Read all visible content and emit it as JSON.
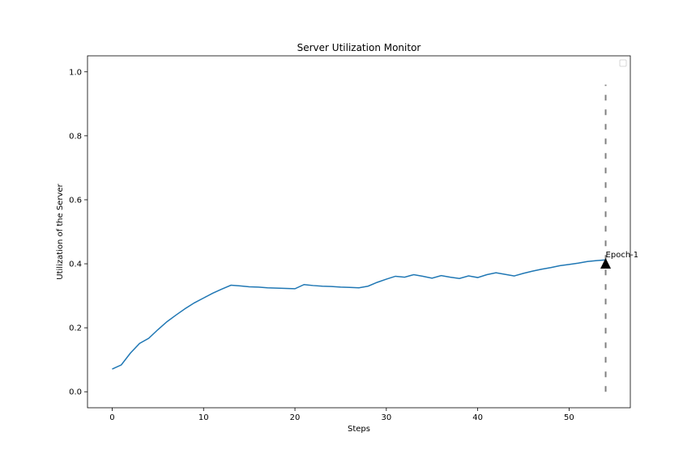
{
  "chart_data": {
    "type": "line",
    "title": "Server Utilization Monitor",
    "xlabel": "Steps",
    "ylabel": "Utilization of the Server",
    "xlim": [
      -2.7,
      56.7
    ],
    "ylim": [
      -0.05,
      1.05
    ],
    "xticks": [
      "0",
      "10",
      "20",
      "30",
      "40",
      "50"
    ],
    "yticks": [
      "0.0",
      "0.2",
      "0.4",
      "0.6",
      "0.8",
      "1.0"
    ],
    "grid": false,
    "legend": "top-right (empty)",
    "line_color": "#1f77b4",
    "x": [
      0,
      1,
      2,
      3,
      4,
      5,
      6,
      7,
      8,
      9,
      10,
      11,
      12,
      13,
      14,
      15,
      16,
      17,
      18,
      19,
      20,
      21,
      22,
      23,
      24,
      25,
      26,
      27,
      28,
      29,
      30,
      31,
      32,
      33,
      34,
      35,
      36,
      37,
      38,
      39,
      40,
      41,
      42,
      43,
      44,
      45,
      46,
      47,
      48,
      49,
      50,
      51,
      52,
      53,
      54
    ],
    "y": [
      0.071,
      0.084,
      0.121,
      0.151,
      0.167,
      0.194,
      0.219,
      0.24,
      0.26,
      0.278,
      0.293,
      0.308,
      0.321,
      0.333,
      0.331,
      0.328,
      0.327,
      0.325,
      0.324,
      0.323,
      0.322,
      0.335,
      0.332,
      0.33,
      0.329,
      0.327,
      0.326,
      0.325,
      0.33,
      0.342,
      0.352,
      0.361,
      0.358,
      0.366,
      0.361,
      0.355,
      0.363,
      0.358,
      0.354,
      0.362,
      0.357,
      0.366,
      0.372,
      0.367,
      0.362,
      0.37,
      0.377,
      0.383,
      0.388,
      0.394,
      0.398,
      0.402,
      0.407,
      0.41,
      0.412
    ],
    "vline": {
      "x": 54,
      "ymin": 0.0,
      "ymax": 0.96,
      "color": "#808080",
      "style": "dashed"
    },
    "marker": {
      "x": 54,
      "y": 0.4,
      "shape": "triangle-up",
      "color": "#000000"
    },
    "annotation": {
      "text": "Epoch-1",
      "x": 54,
      "y": 0.41
    }
  }
}
